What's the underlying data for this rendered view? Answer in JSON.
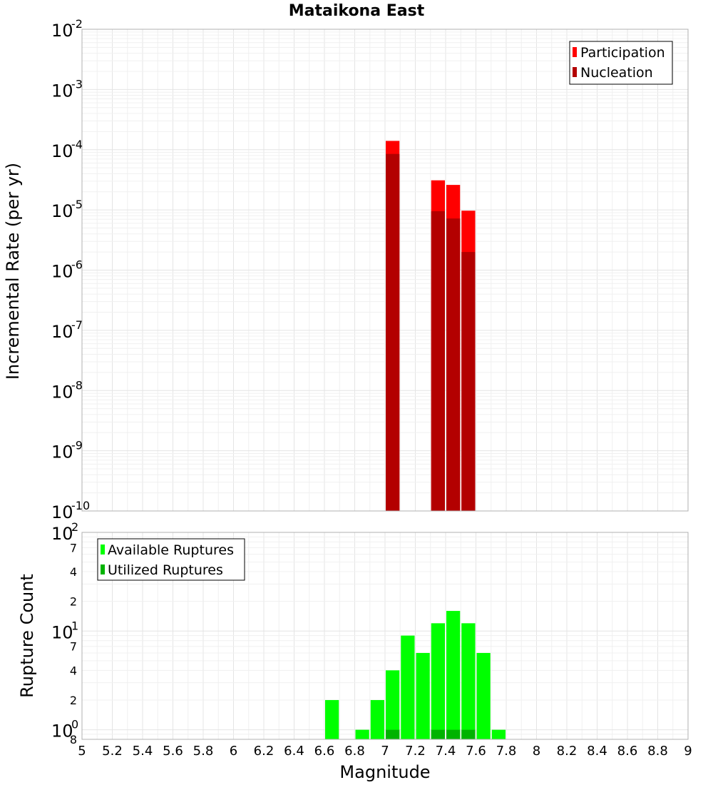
{
  "chart_data": [
    {
      "type": "bar",
      "title": "Mataikona East",
      "xlabel": "",
      "ylabel": "Incremental Rate (per yr)",
      "yscale": "log",
      "ylim": [
        1e-10,
        0.01
      ],
      "xlim": [
        5,
        9
      ],
      "bar_width": 0.1,
      "legend_position": "top-right",
      "y_tick_exponents": [
        "-2",
        "-3",
        "-4",
        "-5",
        "-6",
        "-7",
        "-8",
        "-9",
        "-10"
      ],
      "y_tick_base": "10",
      "series": [
        {
          "name": "Participation",
          "color": "#ff0000",
          "x": [
            7.05,
            7.35,
            7.45,
            7.55
          ],
          "values": [
            0.00014,
            3.1e-05,
            2.6e-05,
            9.7e-06
          ]
        },
        {
          "name": "Nucleation",
          "color": "#b30000",
          "x": [
            7.05,
            7.35,
            7.45,
            7.55
          ],
          "values": [
            8.5e-05,
            9.5e-06,
            7.2e-06,
            2e-06
          ]
        }
      ]
    },
    {
      "type": "bar",
      "title": "",
      "xlabel": "Magnitude",
      "ylabel": "Rupture Count",
      "yscale": "log",
      "ylim": [
        0.8,
        100
      ],
      "xlim": [
        5,
        9
      ],
      "bar_width": 0.1,
      "legend_position": "top-left",
      "x_tick_labels": [
        "5",
        "5.2",
        "5.4",
        "5.6",
        "5.8",
        "6",
        "6.2",
        "6.4",
        "6.6",
        "6.8",
        "7",
        "7.2",
        "7.4",
        "7.6",
        "7.8",
        "8",
        "8.2",
        "8.4",
        "8.6",
        "8.8",
        "9"
      ],
      "y_tick_labels": {
        "major": [
          {
            "base": "10",
            "exp": "2"
          },
          {
            "base": "10",
            "exp": "1"
          },
          {
            "base": "10",
            "exp": "0"
          }
        ],
        "minor": [
          "7",
          "4",
          "2",
          "7",
          "4",
          "2",
          "8"
        ]
      },
      "series": [
        {
          "name": "Available Ruptures",
          "color": "#00ff00",
          "x": [
            6.65,
            6.85,
            6.95,
            7.05,
            7.15,
            7.25,
            7.35,
            7.45,
            7.55,
            7.65,
            7.75
          ],
          "values": [
            2,
            1,
            2,
            4,
            9,
            6,
            12,
            16,
            12,
            6,
            1
          ]
        },
        {
          "name": "Utilized Ruptures",
          "color": "#00b300",
          "x": [
            7.05,
            7.35,
            7.45,
            7.55
          ],
          "values": [
            1,
            1,
            1,
            1
          ]
        }
      ]
    }
  ]
}
